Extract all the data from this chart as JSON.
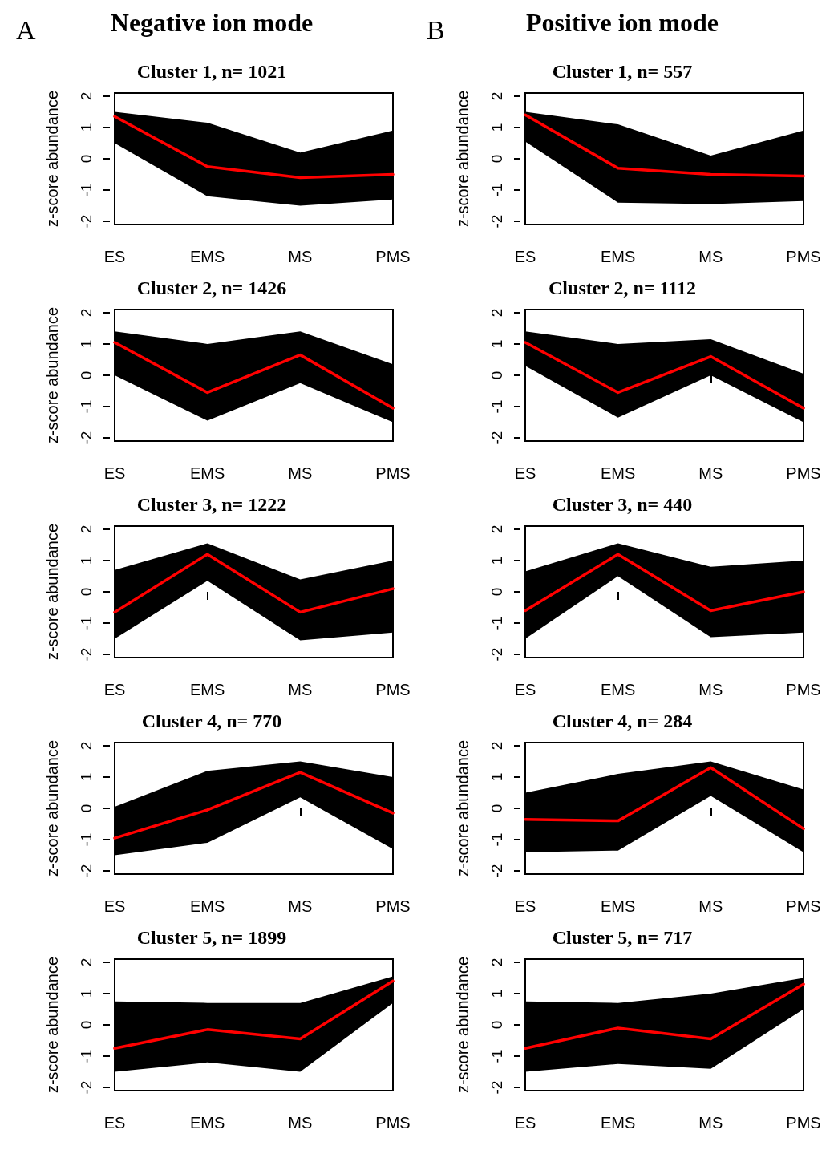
{
  "chart_data": [
    {
      "type": "line",
      "title": "Cluster 1, n= 1021",
      "annotations": [
        "A",
        "Negative ion mode"
      ],
      "ylabel": "z-score abundance",
      "categories": [
        "ES",
        "EMS",
        "MS",
        "PMS"
      ],
      "ylim": [
        -2.1,
        2.1
      ],
      "yticks": [
        -2,
        -1,
        0,
        1,
        2
      ],
      "grid": false,
      "marker": "none",
      "line_style": "solid",
      "series": [
        {
          "color": "#ff0000",
          "values": [
            1.35,
            -0.25,
            -0.6,
            -0.5
          ],
          "lower": [
            0.5,
            -1.2,
            -1.5,
            -1.3
          ],
          "upper": [
            1.5,
            1.15,
            0.2,
            0.9
          ]
        }
      ]
    },
    {
      "type": "line",
      "title": "Cluster 1, n= 557",
      "annotations": [
        "B",
        "Positive ion mode"
      ],
      "ylabel": "z-score abundance",
      "categories": [
        "ES",
        "EMS",
        "MS",
        "PMS"
      ],
      "ylim": [
        -2.1,
        2.1
      ],
      "yticks": [
        -2,
        -1,
        0,
        1,
        2
      ],
      "grid": false,
      "marker": "none",
      "line_style": "solid",
      "series": [
        {
          "color": "#ff0000",
          "values": [
            1.4,
            -0.3,
            -0.5,
            -0.55
          ],
          "lower": [
            0.55,
            -1.4,
            -1.45,
            -1.35
          ],
          "upper": [
            1.5,
            1.1,
            0.1,
            0.9
          ]
        }
      ]
    },
    {
      "type": "line",
      "title": "Cluster 2, n= 1426",
      "ylabel": "z-score abundance",
      "categories": [
        "ES",
        "EMS",
        "MS",
        "PMS"
      ],
      "ylim": [
        -2.1,
        2.1
      ],
      "yticks": [
        -2,
        -1,
        0,
        1,
        2
      ],
      "grid": false,
      "marker": "none",
      "line_style": "solid",
      "series": [
        {
          "color": "#ff0000",
          "values": [
            1.05,
            -0.55,
            0.65,
            -1.05
          ],
          "lower": [
            0,
            -1.45,
            -0.25,
            -1.5
          ],
          "upper": [
            1.4,
            1.0,
            1.4,
            0.35
          ]
        }
      ]
    },
    {
      "type": "line",
      "title": "Cluster 2, n= 1112",
      "categories": [
        "ES",
        "EMS",
        "MS",
        "PMS"
      ],
      "ylim": [
        -2.1,
        2.1
      ],
      "yticks": [
        -2,
        -1,
        0,
        1,
        2
      ],
      "grid": false,
      "marker": "none",
      "line_style": "solid",
      "series": [
        {
          "color": "#ff0000",
          "values": [
            1.05,
            -0.55,
            0.6,
            -1.05
          ],
          "lower": [
            0.3,
            -1.35,
            0,
            -1.5
          ],
          "upper": [
            1.4,
            1.0,
            1.15,
            0.05
          ]
        }
      ]
    },
    {
      "type": "line",
      "title": "Cluster 3, n= 1222",
      "ylabel": "z-score abundance",
      "categories": [
        "ES",
        "EMS",
        "MS",
        "PMS"
      ],
      "ylim": [
        -2.1,
        2.1
      ],
      "yticks": [
        -2,
        -1,
        0,
        1,
        2
      ],
      "grid": false,
      "marker": "none",
      "line_style": "solid",
      "series": [
        {
          "color": "#ff0000",
          "values": [
            -0.65,
            1.2,
            -0.65,
            0.1
          ],
          "lower": [
            -1.5,
            0.35,
            -1.55,
            -1.3
          ],
          "upper": [
            0.7,
            1.55,
            0.4,
            1.0
          ]
        }
      ]
    },
    {
      "type": "line",
      "title": "Cluster 3, n= 440",
      "categories": [
        "ES",
        "EMS",
        "MS",
        "PMS"
      ],
      "ylim": [
        -2.1,
        2.1
      ],
      "yticks": [
        -2,
        -1,
        0,
        1,
        2
      ],
      "grid": false,
      "marker": "none",
      "line_style": "solid",
      "series": [
        {
          "color": "#ff0000",
          "values": [
            -0.6,
            1.2,
            -0.6,
            0
          ],
          "lower": [
            -1.5,
            0.5,
            -1.45,
            -1.3
          ],
          "upper": [
            0.65,
            1.55,
            0.8,
            1.0
          ]
        }
      ]
    },
    {
      "type": "line",
      "title": "Cluster 4, n= 770",
      "ylabel": "z-score abundance",
      "categories": [
        "ES",
        "EMS",
        "MS",
        "PMS"
      ],
      "ylim": [
        -2.1,
        2.1
      ],
      "yticks": [
        -2,
        -1,
        0,
        1,
        2
      ],
      "grid": false,
      "marker": "none",
      "line_style": "solid",
      "series": [
        {
          "color": "#ff0000",
          "values": [
            -0.95,
            -0.05,
            1.15,
            -0.15
          ],
          "lower": [
            -1.5,
            -1.1,
            0.35,
            -1.3
          ],
          "upper": [
            0.05,
            1.2,
            1.5,
            1.0
          ]
        }
      ]
    },
    {
      "type": "line",
      "title": "Cluster 4, n= 284",
      "ylabel": "z-score abundance",
      "categories": [
        "ES",
        "EMS",
        "MS",
        "PMS"
      ],
      "ylim": [
        -2.1,
        2.1
      ],
      "yticks": [
        -2,
        -1,
        0,
        1,
        2
      ],
      "grid": false,
      "marker": "none",
      "line_style": "solid",
      "series": [
        {
          "color": "#ff0000",
          "values": [
            -0.35,
            -0.4,
            1.3,
            -0.65
          ],
          "lower": [
            -1.4,
            -1.35,
            0.4,
            -1.4
          ],
          "upper": [
            0.5,
            1.1,
            1.5,
            0.6
          ]
        }
      ]
    },
    {
      "type": "line",
      "title": "Cluster 5, n= 1899",
      "ylabel": "z-score abundance",
      "categories": [
        "ES",
        "EMS",
        "MS",
        "PMS"
      ],
      "ylim": [
        -2.1,
        2.1
      ],
      "yticks": [
        -2,
        -1,
        0,
        1,
        2
      ],
      "grid": false,
      "marker": "none",
      "line_style": "solid",
      "series": [
        {
          "color": "#ff0000",
          "values": [
            -0.75,
            -0.15,
            -0.45,
            1.4
          ],
          "lower": [
            -1.5,
            -1.2,
            -1.5,
            0.7
          ],
          "upper": [
            0.75,
            0.7,
            0.7,
            1.55
          ]
        }
      ]
    },
    {
      "type": "line",
      "title": "Cluster 5, n= 717",
      "ylabel": "z-score abundance",
      "categories": [
        "ES",
        "EMS",
        "MS",
        "PMS"
      ],
      "ylim": [
        -2.1,
        2.1
      ],
      "yticks": [
        -2,
        -1,
        0,
        1,
        2
      ],
      "grid": false,
      "marker": "none",
      "line_style": "solid",
      "series": [
        {
          "color": "#ff0000",
          "values": [
            -0.75,
            -0.1,
            -0.45,
            1.3
          ],
          "lower": [
            -1.5,
            -1.25,
            -1.4,
            0.5
          ],
          "upper": [
            0.75,
            0.7,
            1.0,
            1.5
          ]
        }
      ]
    }
  ]
}
